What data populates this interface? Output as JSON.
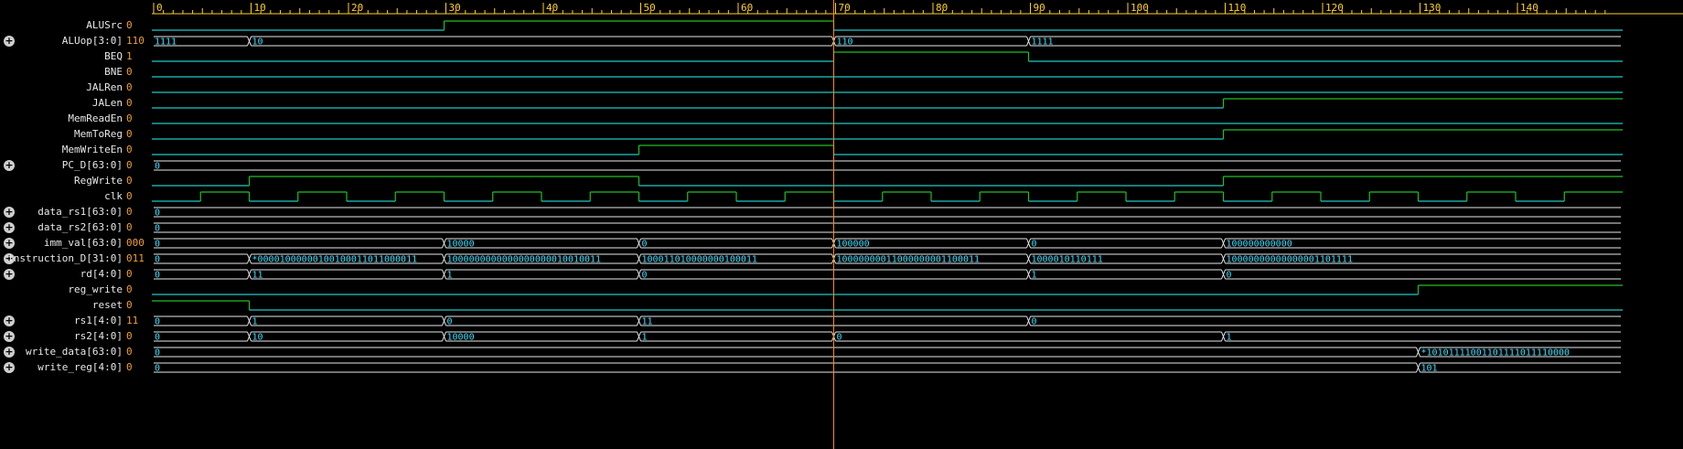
{
  "timescale": {
    "ticks": [
      "0",
      "10",
      "20",
      "30",
      "40",
      "50",
      "60",
      "70",
      "80",
      "90",
      "100",
      "110",
      "120",
      "130",
      "140"
    ],
    "end": 149,
    "cursor": 70
  },
  "colors": {
    "background": "#000000",
    "ruler": "#ffd020",
    "wave_low": "#20c8c8",
    "wave_high": "#20c020",
    "bus": "#e8e8e8",
    "bus_text": "#40e0ff",
    "cursor": "#ff8c00",
    "value_text": "#f0a030",
    "name_text": "#e8e8e8"
  },
  "signals": [
    {
      "name": "ALUSrc",
      "value": "0",
      "kind": "bit",
      "expandable": false,
      "transitions": [
        [
          0,
          0
        ],
        [
          30,
          1
        ],
        [
          70,
          0
        ]
      ]
    },
    {
      "name": "ALUop[3:0]",
      "value": "110",
      "kind": "bus",
      "expandable": true,
      "segments": [
        [
          0,
          "1111"
        ],
        [
          10,
          "10"
        ],
        [
          70,
          "110"
        ],
        [
          90,
          "1111"
        ]
      ]
    },
    {
      "name": "BEQ",
      "value": "1",
      "kind": "bit",
      "expandable": false,
      "transitions": [
        [
          0,
          0
        ],
        [
          70,
          1
        ],
        [
          90,
          0
        ]
      ]
    },
    {
      "name": "BNE",
      "value": "0",
      "kind": "bit",
      "expandable": false,
      "transitions": [
        [
          0,
          0
        ]
      ]
    },
    {
      "name": "JALRen",
      "value": "0",
      "kind": "bit",
      "expandable": false,
      "transitions": [
        [
          0,
          0
        ]
      ]
    },
    {
      "name": "JALen",
      "value": "0",
      "kind": "bit",
      "expandable": false,
      "transitions": [
        [
          0,
          0
        ],
        [
          110,
          1
        ]
      ]
    },
    {
      "name": "MemReadEn",
      "value": "0",
      "kind": "bit",
      "expandable": false,
      "transitions": [
        [
          0,
          0
        ]
      ]
    },
    {
      "name": "MemToReg",
      "value": "0",
      "kind": "bit",
      "expandable": false,
      "transitions": [
        [
          0,
          0
        ],
        [
          110,
          1
        ]
      ]
    },
    {
      "name": "MemWriteEn",
      "value": "0",
      "kind": "bit",
      "expandable": false,
      "transitions": [
        [
          0,
          0
        ],
        [
          50,
          1
        ],
        [
          70,
          0
        ]
      ]
    },
    {
      "name": "PC_D[63:0]",
      "value": "0",
      "kind": "bus",
      "expandable": true,
      "segments": [
        [
          0,
          "0"
        ]
      ]
    },
    {
      "name": "RegWrite",
      "value": "0",
      "kind": "bit",
      "expandable": false,
      "transitions": [
        [
          0,
          0
        ],
        [
          10,
          1
        ],
        [
          50,
          0
        ],
        [
          110,
          1
        ]
      ]
    },
    {
      "name": "clk",
      "value": "0",
      "kind": "bit",
      "expandable": false,
      "transitions": [
        [
          0,
          0
        ],
        [
          5,
          1
        ],
        [
          10,
          0
        ],
        [
          15,
          1
        ],
        [
          20,
          0
        ],
        [
          25,
          1
        ],
        [
          30,
          0
        ],
        [
          35,
          1
        ],
        [
          40,
          0
        ],
        [
          45,
          1
        ],
        [
          50,
          0
        ],
        [
          55,
          1
        ],
        [
          60,
          0
        ],
        [
          65,
          1
        ],
        [
          70,
          0
        ],
        [
          75,
          1
        ],
        [
          80,
          0
        ],
        [
          85,
          1
        ],
        [
          90,
          0
        ],
        [
          95,
          1
        ],
        [
          100,
          0
        ],
        [
          105,
          1
        ],
        [
          110,
          0
        ],
        [
          115,
          1
        ],
        [
          120,
          0
        ],
        [
          125,
          1
        ],
        [
          130,
          0
        ],
        [
          135,
          1
        ],
        [
          140,
          0
        ],
        [
          145,
          1
        ]
      ]
    },
    {
      "name": "data_rs1[63:0]",
      "value": "0",
      "kind": "bus",
      "expandable": true,
      "segments": [
        [
          0,
          "0"
        ]
      ]
    },
    {
      "name": "data_rs2[63:0]",
      "value": "0",
      "kind": "bus",
      "expandable": true,
      "segments": [
        [
          0,
          "0"
        ]
      ]
    },
    {
      "name": "imm_val[63:0]",
      "value": "000",
      "kind": "bus",
      "expandable": true,
      "segments": [
        [
          0,
          "0"
        ],
        [
          30,
          "10000"
        ],
        [
          50,
          "0"
        ],
        [
          70,
          "100000"
        ],
        [
          90,
          "0"
        ],
        [
          110,
          "100000000000"
        ]
      ]
    },
    {
      "name": "instruction_D[31:0]",
      "value": "011",
      "kind": "bus",
      "expandable": true,
      "segments": [
        [
          0,
          "0"
        ],
        [
          10,
          "*00001000000100100011011000011"
        ],
        [
          30,
          "1000000000000000000010010011"
        ],
        [
          50,
          "100011010000000100011"
        ],
        [
          70,
          "10000000011000000001100011"
        ],
        [
          90,
          "1000010110111"
        ],
        [
          110,
          "10000000000000001101111"
        ]
      ]
    },
    {
      "name": "rd[4:0]",
      "value": "0",
      "kind": "bus",
      "expandable": true,
      "segments": [
        [
          0,
          "0"
        ],
        [
          10,
          "11"
        ],
        [
          30,
          "1"
        ],
        [
          50,
          "0"
        ],
        [
          90,
          "1"
        ],
        [
          110,
          "0"
        ]
      ]
    },
    {
      "name": "reg_write",
      "value": "0",
      "kind": "bit",
      "expandable": false,
      "transitions": [
        [
          0,
          0
        ],
        [
          130,
          1
        ]
      ]
    },
    {
      "name": "reset",
      "value": "0",
      "kind": "bit",
      "expandable": false,
      "transitions": [
        [
          0,
          1
        ],
        [
          10,
          0
        ]
      ]
    },
    {
      "name": "rs1[4:0]",
      "value": "11",
      "kind": "bus",
      "expandable": true,
      "segments": [
        [
          0,
          "0"
        ],
        [
          10,
          "1"
        ],
        [
          30,
          "0"
        ],
        [
          50,
          "11"
        ],
        [
          90,
          "0"
        ]
      ]
    },
    {
      "name": "rs2[4:0]",
      "value": "0",
      "kind": "bus",
      "expandable": true,
      "segments": [
        [
          0,
          "0"
        ],
        [
          10,
          "10"
        ],
        [
          30,
          "10000"
        ],
        [
          50,
          "1"
        ],
        [
          70,
          "0"
        ],
        [
          110,
          "1"
        ]
      ]
    },
    {
      "name": "write_data[63:0]",
      "value": "0",
      "kind": "bus",
      "expandable": true,
      "segments": [
        [
          0,
          "0"
        ],
        [
          130,
          "*10101111001101111011110000"
        ]
      ]
    },
    {
      "name": "write_reg[4:0]",
      "value": "0",
      "kind": "bus",
      "expandable": true,
      "segments": [
        [
          0,
          "0"
        ],
        [
          130,
          "101"
        ]
      ]
    }
  ]
}
